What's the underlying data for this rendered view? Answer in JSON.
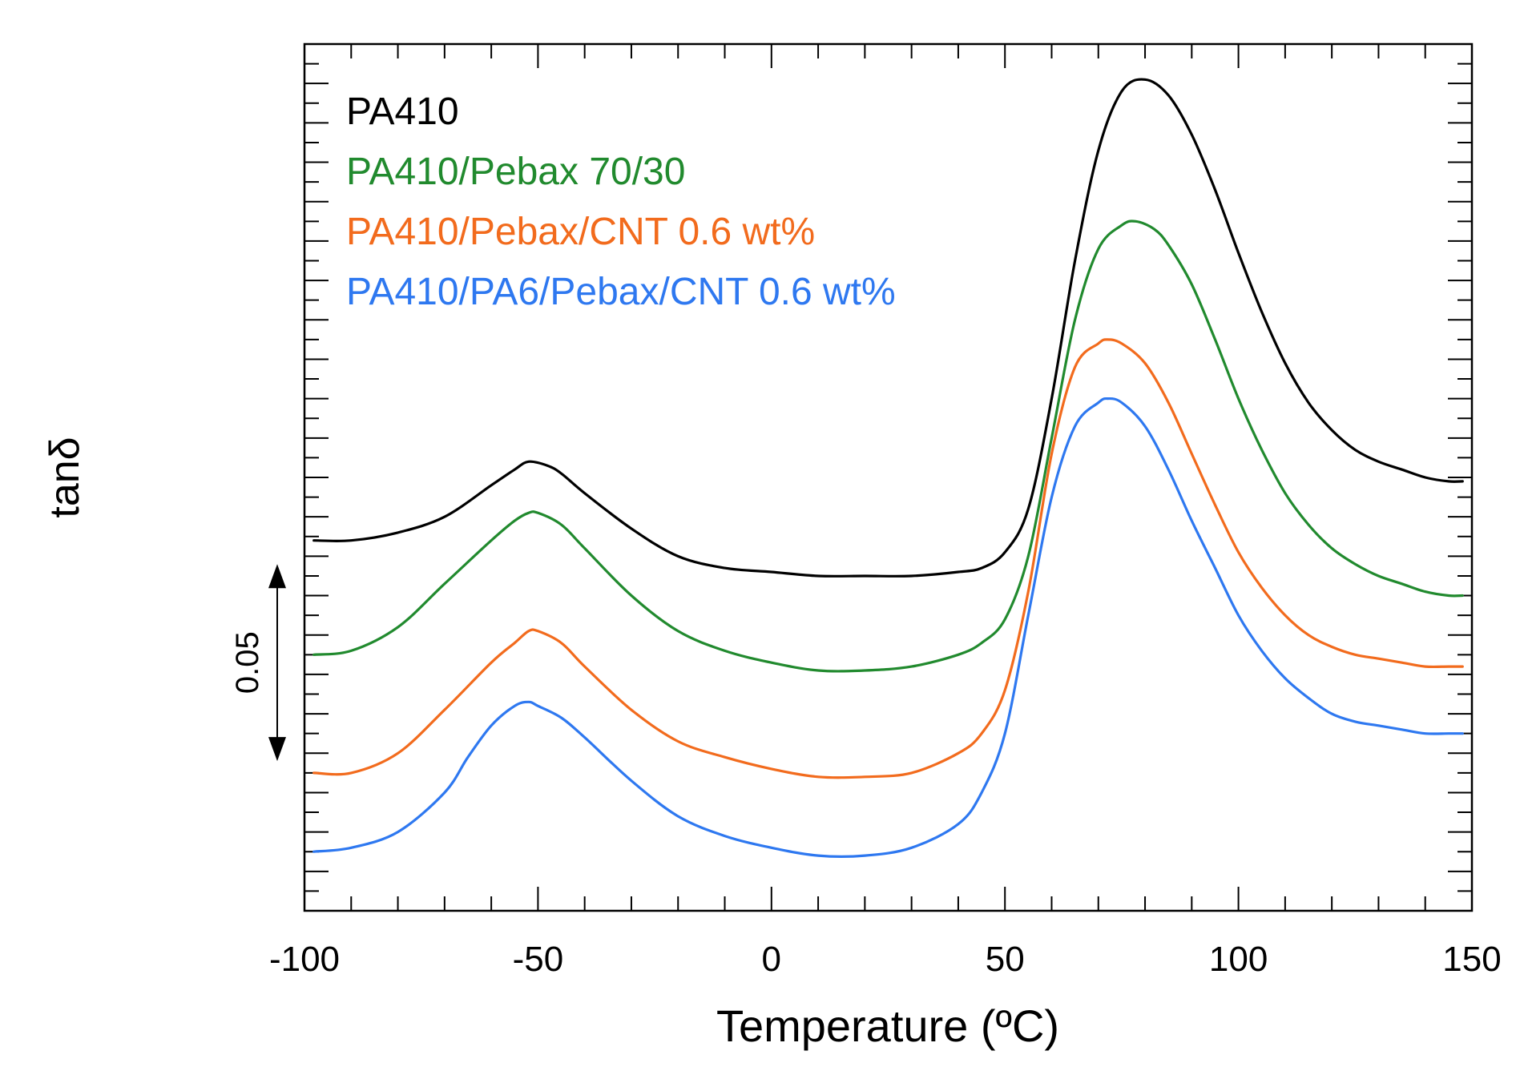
{
  "chart_data": {
    "type": "line",
    "title": "",
    "xlabel": "Temperature (ºC)",
    "ylabel": "tanδ",
    "xlim": [
      -100,
      150
    ],
    "ylim": [
      0,
      0.22
    ],
    "x_ticks": [
      -100,
      -50,
      0,
      50,
      100,
      150
    ],
    "x_tick_labels": [
      "-100",
      "-50",
      "0",
      "50",
      "100",
      "150"
    ],
    "grid": false,
    "legend_position": "top-left",
    "scale_bar": {
      "label": "0.05",
      "value": 0.05,
      "from": 0.038,
      "to": 0.088
    },
    "series": [
      {
        "name": "PA410",
        "color": "#000000",
        "x": [
          -98,
          -90,
          -80,
          -70,
          -60,
          -55,
          -52,
          -48,
          -45,
          -40,
          -30,
          -20,
          -10,
          0,
          10,
          20,
          30,
          40,
          45,
          50,
          55,
          60,
          65,
          70,
          75,
          80,
          85,
          90,
          95,
          100,
          105,
          110,
          115,
          120,
          125,
          130,
          135,
          140,
          145,
          148
        ],
        "y": [
          0.094,
          0.094,
          0.096,
          0.1,
          0.108,
          0.112,
          0.114,
          0.113,
          0.111,
          0.106,
          0.097,
          0.09,
          0.087,
          0.086,
          0.085,
          0.085,
          0.085,
          0.086,
          0.087,
          0.091,
          0.102,
          0.13,
          0.165,
          0.193,
          0.208,
          0.211,
          0.207,
          0.197,
          0.183,
          0.167,
          0.152,
          0.139,
          0.129,
          0.122,
          0.117,
          0.114,
          0.112,
          0.11,
          0.109,
          0.109
        ]
      },
      {
        "name": "PA410/Pebax 70/30",
        "color": "#218a2e",
        "x": [
          -98,
          -90,
          -80,
          -70,
          -60,
          -55,
          -52,
          -50,
          -45,
          -40,
          -30,
          -20,
          -10,
          0,
          10,
          20,
          30,
          40,
          45,
          50,
          55,
          60,
          65,
          70,
          75,
          78,
          82,
          85,
          90,
          95,
          100,
          105,
          110,
          115,
          120,
          125,
          130,
          135,
          140,
          145,
          148
        ],
        "y": [
          0.065,
          0.066,
          0.072,
          0.083,
          0.094,
          0.099,
          0.101,
          0.101,
          0.098,
          0.092,
          0.08,
          0.071,
          0.066,
          0.063,
          0.061,
          0.061,
          0.062,
          0.065,
          0.068,
          0.074,
          0.09,
          0.12,
          0.15,
          0.168,
          0.174,
          0.175,
          0.173,
          0.169,
          0.159,
          0.145,
          0.13,
          0.117,
          0.106,
          0.098,
          0.092,
          0.088,
          0.085,
          0.083,
          0.081,
          0.08,
          0.08
        ]
      },
      {
        "name": "PA410/Pebax/CNT 0.6 wt%",
        "color": "#f26b1d",
        "x": [
          -98,
          -90,
          -80,
          -70,
          -60,
          -55,
          -52,
          -50,
          -45,
          -40,
          -30,
          -20,
          -10,
          0,
          10,
          20,
          30,
          40,
          45,
          50,
          55,
          60,
          65,
          70,
          72,
          75,
          80,
          85,
          90,
          95,
          100,
          105,
          110,
          115,
          120,
          125,
          130,
          135,
          140,
          145,
          148
        ],
        "y": [
          0.035,
          0.035,
          0.04,
          0.051,
          0.063,
          0.068,
          0.071,
          0.071,
          0.068,
          0.062,
          0.051,
          0.043,
          0.039,
          0.036,
          0.034,
          0.034,
          0.035,
          0.04,
          0.045,
          0.056,
          0.081,
          0.116,
          0.138,
          0.144,
          0.145,
          0.144,
          0.139,
          0.129,
          0.116,
          0.103,
          0.091,
          0.082,
          0.075,
          0.07,
          0.067,
          0.065,
          0.064,
          0.063,
          0.062,
          0.062,
          0.062
        ]
      },
      {
        "name": "PA410/PA6/Pebax/CNT 0.6 wt%",
        "color": "#2e78f0",
        "x": [
          -98,
          -90,
          -80,
          -70,
          -65,
          -60,
          -55,
          -52,
          -50,
          -45,
          -40,
          -30,
          -20,
          -10,
          0,
          10,
          20,
          30,
          40,
          45,
          50,
          55,
          60,
          65,
          70,
          72,
          75,
          80,
          85,
          90,
          95,
          100,
          105,
          110,
          115,
          120,
          125,
          130,
          135,
          140,
          145,
          148
        ],
        "y": [
          0.015,
          0.016,
          0.02,
          0.03,
          0.039,
          0.047,
          0.052,
          0.053,
          0.052,
          0.049,
          0.044,
          0.033,
          0.024,
          0.019,
          0.016,
          0.014,
          0.014,
          0.016,
          0.022,
          0.03,
          0.045,
          0.075,
          0.105,
          0.123,
          0.129,
          0.13,
          0.129,
          0.123,
          0.112,
          0.099,
          0.087,
          0.075,
          0.066,
          0.059,
          0.054,
          0.05,
          0.048,
          0.047,
          0.046,
          0.045,
          0.045,
          0.045
        ]
      }
    ]
  }
}
